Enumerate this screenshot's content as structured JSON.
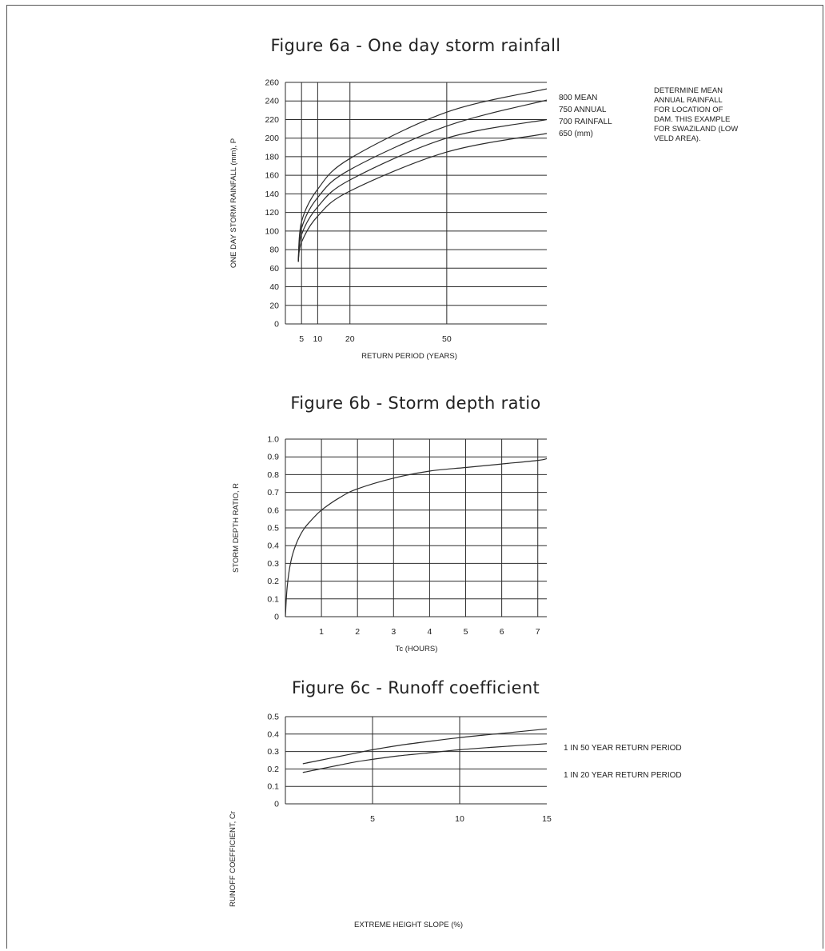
{
  "figures": [
    {
      "title": "Figure 6a - One day storm rainfall"
    },
    {
      "title": "Figure 6b - Storm depth ratio"
    },
    {
      "title": "Figure 6c - Runoff coefficient"
    }
  ],
  "note": {
    "lines": [
      "DETERMINE MEAN",
      "ANNUAL RAINFALL",
      "FOR LOCATION OF",
      "DAM. THIS EXAMPLE",
      "FOR SWAZILAND (LOW",
      "VELD AREA)."
    ]
  },
  "colors": {
    "line": "#2b2b2b",
    "grid": "#2b2b2b",
    "frame": "#555555"
  },
  "chart_data": [
    {
      "type": "line",
      "title": "Figure 6a - One day storm rainfall",
      "xlabel": "RETURN PERIOD (YEARS)",
      "ylabel": "ONE DAY STORM RAINFALL (mm), P",
      "ylim": [
        0,
        260
      ],
      "xlim": [
        0,
        81
      ],
      "yticks": [
        0,
        20,
        40,
        60,
        80,
        100,
        120,
        140,
        160,
        180,
        200,
        220,
        240,
        260
      ],
      "xticks": [
        5,
        10,
        20,
        50
      ],
      "grid": "horizontal lines every 20; vertical lines at 5, 10, 20, 50",
      "series": [
        {
          "name": "800 MEAN",
          "x": [
            4,
            5,
            10,
            20,
            50,
            81
          ],
          "y": [
            67,
            110,
            145,
            178,
            228,
            253
          ]
        },
        {
          "name": "750 ANNUAL",
          "x": [
            4,
            5,
            10,
            20,
            50,
            81
          ],
          "y": [
            67,
            103,
            136,
            166,
            213,
            241
          ]
        },
        {
          "name": "700 RAINFALL",
          "x": [
            4,
            5,
            10,
            20,
            50,
            81
          ],
          "y": [
            67,
            96,
            126,
            155,
            200,
            220
          ]
        },
        {
          "name": "650 (mm)",
          "x": [
            4,
            5,
            10,
            20,
            50,
            81
          ],
          "y": [
            67,
            88,
            116,
            143,
            185,
            205
          ]
        }
      ]
    },
    {
      "type": "line",
      "title": "Figure 6b - Storm depth ratio",
      "xlabel": "Tc (HOURS)",
      "ylabel": "STORM DEPTH RATIO, R",
      "ylim": [
        0,
        1.0
      ],
      "xlim": [
        0,
        7.25
      ],
      "yticks": [
        "0",
        "0.1",
        "0.2",
        "0.3",
        "0.4",
        "0.5",
        "0.6",
        "0.7",
        "0.8",
        "0.9",
        "1.0"
      ],
      "xticks": [
        1,
        2,
        3,
        4,
        5,
        6,
        7
      ],
      "grid": "horizontal every 0.1; vertical every 1",
      "series": [
        {
          "x": [
            0.0,
            0.05,
            0.15,
            0.3,
            0.5,
            0.75,
            1,
            1.5,
            2,
            3,
            4,
            5,
            6,
            7,
            7.25
          ],
          "y": [
            0.0,
            0.17,
            0.31,
            0.41,
            0.49,
            0.55,
            0.6,
            0.67,
            0.72,
            0.78,
            0.82,
            0.84,
            0.86,
            0.88,
            0.89
          ]
        }
      ]
    },
    {
      "type": "line",
      "title": "Figure 6c - Runoff coefficient",
      "xlabel": "EXTREME HEIGHT SLOPE (%)",
      "ylabel": "RUNOFF COEFFICIENT, Cr",
      "ylim": [
        0,
        0.5
      ],
      "xlim": [
        0,
        15
      ],
      "yticks": [
        "0",
        "0.1",
        "0.2",
        "0.3",
        "0.4",
        "0.5"
      ],
      "xticks": [
        5,
        10,
        15
      ],
      "grid": "horizontal every 0.1; vertical at 5 and 10",
      "series": [
        {
          "name": "1 IN 50 YEAR RETURN PERIOD",
          "x": [
            1,
            2,
            3,
            4,
            5,
            6.5,
            8,
            10,
            12,
            15
          ],
          "y": [
            0.23,
            0.25,
            0.27,
            0.29,
            0.31,
            0.335,
            0.355,
            0.38,
            0.4,
            0.43
          ]
        },
        {
          "name": "1 IN 20 YEAR RETURN PERIOD",
          "x": [
            1,
            2,
            3,
            4,
            5,
            6.5,
            8,
            10,
            12,
            15
          ],
          "y": [
            0.18,
            0.2,
            0.22,
            0.24,
            0.255,
            0.275,
            0.29,
            0.31,
            0.325,
            0.345
          ]
        }
      ]
    }
  ]
}
